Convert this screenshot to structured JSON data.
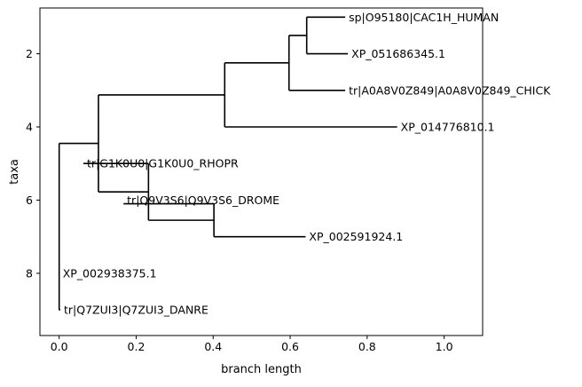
{
  "chart_data": {
    "type": "phylogenetic-tree",
    "xlabel": "branch length",
    "ylabel": "taxa",
    "xlim": [
      -0.05,
      1.1
    ],
    "ylim": [
      9.7,
      0.75
    ],
    "xticks": [
      0.0,
      0.2,
      0.4,
      0.6,
      0.8,
      1.0
    ],
    "xtick_labels": [
      "0.0",
      "0.2",
      "0.4",
      "0.6",
      "0.8",
      "1.0"
    ],
    "yticks": [
      2,
      4,
      6,
      8
    ],
    "ytick_labels": [
      "2",
      "4",
      "6",
      "8"
    ],
    "grid": false,
    "line_color": "#000000",
    "leaves": [
      {
        "label": "sp|O95180|CAC1H_HUMAN",
        "x": 0.743,
        "y": 1
      },
      {
        "label": "XP_051686345.1",
        "x": 0.75,
        "y": 2
      },
      {
        "label": "tr|A0A8V0Z849|A0A8V0Z849_CHICK",
        "x": 0.743,
        "y": 3
      },
      {
        "label": "XP_014776810.1",
        "x": 0.878,
        "y": 4
      },
      {
        "label": "tr|G1K0U0|G1K0U0_RHOPR",
        "x": 0.063,
        "y": 5
      },
      {
        "label": "tr|Q9V3S6|Q9V3S6_DROME",
        "x": 0.167,
        "y": 6
      },
      {
        "label": "XP_002591924.1",
        "x": 0.64,
        "y": 7
      },
      {
        "label": "XP_002938375.1",
        "x": 0.0,
        "y": 8
      },
      {
        "label": "tr|Q7ZUI3|Q7ZUI3_DANRE",
        "x": 0.003,
        "y": 9
      }
    ],
    "vlines": [
      {
        "x": 0.0,
        "y1": 4.45,
        "y2": 9
      },
      {
        "x": 0.102,
        "y1": 3.125,
        "y2": 5.775
      },
      {
        "x": 0.43,
        "y1": 2.25,
        "y2": 4
      },
      {
        "x": 0.597,
        "y1": 1.5,
        "y2": 3
      },
      {
        "x": 0.643,
        "y1": 1,
        "y2": 2
      },
      {
        "x": 0.232,
        "y1": 5,
        "y2": 6.55
      },
      {
        "x": 0.402,
        "y1": 6.1,
        "y2": 7
      }
    ],
    "hlines": [
      {
        "x1": 0.0,
        "x2": 0.102,
        "y": 4.45
      },
      {
        "x1": 0.0,
        "x2": 0.003,
        "y": 9
      },
      {
        "x1": 0.102,
        "x2": 0.43,
        "y": 3.125
      },
      {
        "x1": 0.102,
        "x2": 0.232,
        "y": 5.775
      },
      {
        "x1": 0.43,
        "x2": 0.597,
        "y": 2.25
      },
      {
        "x1": 0.43,
        "x2": 0.878,
        "y": 4
      },
      {
        "x1": 0.597,
        "x2": 0.643,
        "y": 1.5
      },
      {
        "x1": 0.597,
        "x2": 0.743,
        "y": 3
      },
      {
        "x1": 0.643,
        "x2": 0.743,
        "y": 1
      },
      {
        "x1": 0.643,
        "x2": 0.75,
        "y": 2
      },
      {
        "x1": 0.063,
        "x2": 0.232,
        "y": 5
      },
      {
        "x1": 0.232,
        "x2": 0.402,
        "y": 6.55
      },
      {
        "x1": 0.167,
        "x2": 0.402,
        "y": 6.1
      },
      {
        "x1": 0.402,
        "x2": 0.64,
        "y": 7
      }
    ]
  }
}
